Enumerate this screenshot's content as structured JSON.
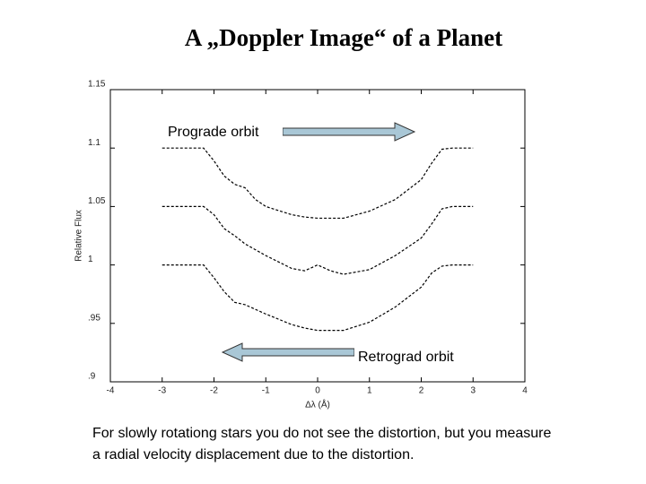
{
  "chart_data": {
    "type": "line",
    "title": "A „Doppler Image“ of a Planet",
    "xlabel": "Δλ (Å)",
    "ylabel": "Relative Flux",
    "annotations": [
      "Prograde orbit",
      "Retrograd orbit"
    ],
    "x": [
      -3,
      -2.5,
      -2.2,
      -2,
      -1.8,
      -1.6,
      -1.4,
      -1.2,
      -1,
      -0.5,
      -0.25,
      0,
      0.25,
      0.5,
      1,
      1.5,
      2,
      2.2,
      2.4,
      2.6,
      3
    ],
    "series": [
      {
        "color": "#000000",
        "values": [
          1.1,
          1.1,
          1.1,
          1.089,
          1.076,
          1.069,
          1.066,
          1.056,
          1.05,
          1.043,
          1.041,
          1.04,
          1.04,
          1.04,
          1.046,
          1.056,
          1.073,
          1.087,
          1.099,
          1.1,
          1.1
        ]
      },
      {
        "color": "#000000",
        "values": [
          1.05,
          1.05,
          1.05,
          1.043,
          1.031,
          1.025,
          1.018,
          1.013,
          1.008,
          0.997,
          0.995,
          1.0,
          0.995,
          0.992,
          0.996,
          1.008,
          1.023,
          1.035,
          1.048,
          1.05,
          1.05
        ]
      },
      {
        "color": "#000000",
        "values": [
          1.0,
          1.0,
          1.0,
          0.989,
          0.977,
          0.968,
          0.966,
          0.962,
          0.958,
          0.949,
          0.946,
          0.944,
          0.944,
          0.944,
          0.951,
          0.964,
          0.981,
          0.993,
          0.999,
          1.0,
          1.0
        ]
      }
    ],
    "xlim": [
      -4,
      4
    ],
    "xticks": [
      -4,
      -3,
      -2,
      -1,
      0,
      1,
      2,
      3,
      4
    ],
    "ylim": [
      0.9,
      1.15
    ],
    "yticks": [
      {
        "value": 0.9,
        "label": ".9"
      },
      {
        "value": 0.95,
        "label": ".95"
      },
      1,
      1.05,
      1.1,
      1.15
    ]
  },
  "caption": "For slowly rotationg stars you do not see the distortion, but you measure a radial velocity displacement due to the distortion."
}
